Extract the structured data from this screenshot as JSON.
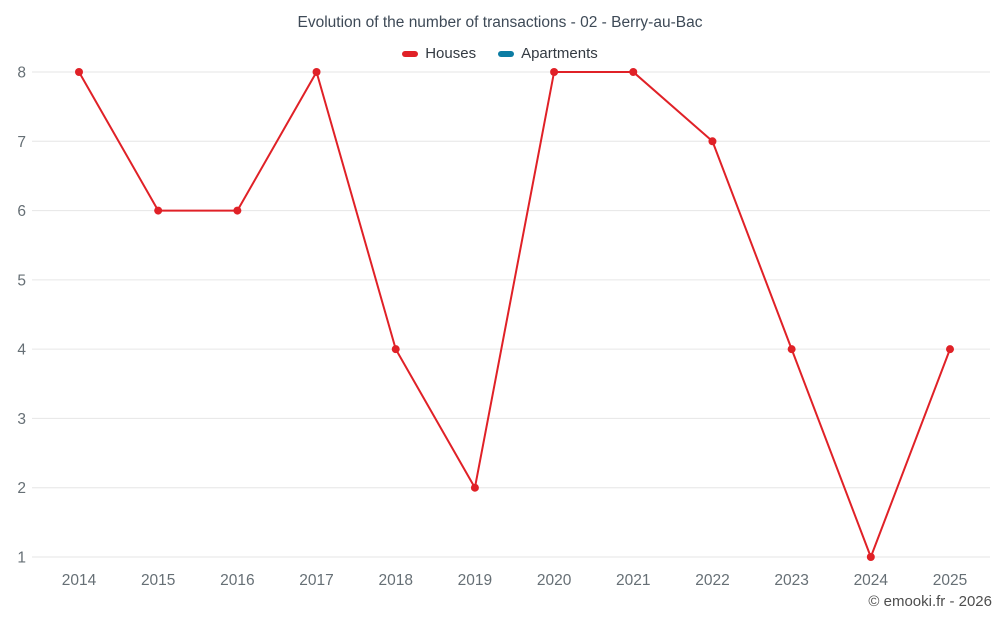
{
  "chart": {
    "title": "Evolution of the number of transactions - 02 - Berry-au-Bac",
    "credit": "© emooki.fr - 2026"
  },
  "chart_data": {
    "type": "line",
    "title": "Evolution of the number of transactions - 02 - Berry-au-Bac",
    "categories": [
      "2014",
      "2015",
      "2016",
      "2017",
      "2018",
      "2019",
      "2020",
      "2021",
      "2022",
      "2023",
      "2024",
      "2025"
    ],
    "series": [
      {
        "name": "Houses",
        "color": "#e02127",
        "values": [
          8,
          6,
          6,
          8,
          4,
          2,
          8,
          8,
          7,
          4,
          1,
          4
        ]
      },
      {
        "name": "Apartments",
        "color": "#0c7ca3",
        "values": []
      }
    ],
    "xlabel": "",
    "ylabel": "",
    "ylim": [
      1,
      8
    ],
    "grid": true,
    "legend_position": "top",
    "axis_label_color": "#666f75",
    "gridline_color": "#e6e6e6"
  }
}
